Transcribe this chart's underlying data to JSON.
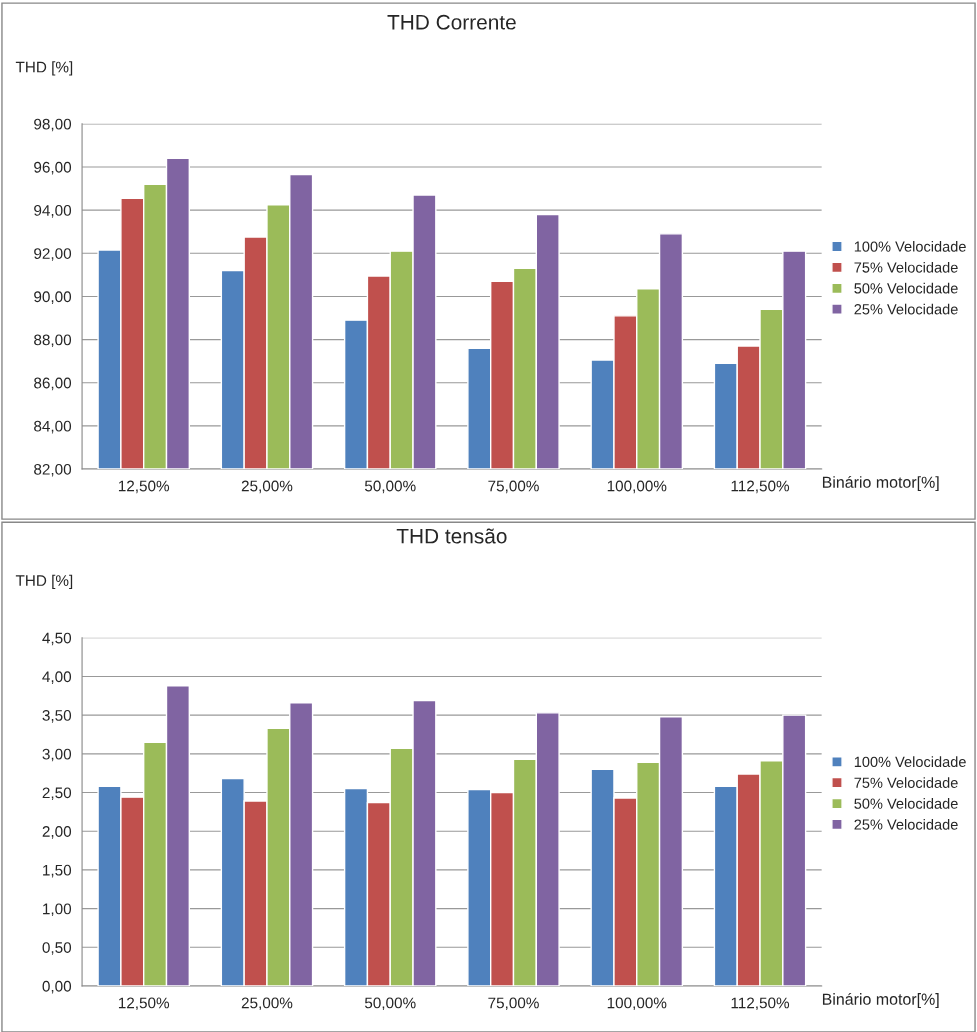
{
  "chart_data": [
    {
      "type": "bar",
      "title": "THD Corrente",
      "ylabel": "THD [%]",
      "xlabel": "Binário motor[%]",
      "categories": [
        "12,50%",
        "25,00%",
        "50,00%",
        "75,00%",
        "100,00%",
        "112,50%"
      ],
      "series": [
        {
          "name": "100% Velocidade",
          "color": "#4f81bd",
          "values": [
            92.15,
            91.2,
            88.9,
            87.6,
            87.05,
            86.9
          ]
        },
        {
          "name": "75% Velocidade",
          "color": "#c0504d",
          "values": [
            94.55,
            92.75,
            90.95,
            90.7,
            89.1,
            87.7
          ]
        },
        {
          "name": "50% Velocidade",
          "color": "#9bbb59",
          "values": [
            95.2,
            94.25,
            92.1,
            91.3,
            90.35,
            89.4
          ]
        },
        {
          "name": "25% Velocidade",
          "color": "#8064a2",
          "values": [
            96.4,
            95.65,
            94.7,
            93.8,
            92.9,
            92.1
          ]
        }
      ],
      "ylim": [
        82,
        98
      ],
      "yticks": [
        {
          "value": 82,
          "label": "82,00"
        },
        {
          "value": 84,
          "label": "84,00"
        },
        {
          "value": 86,
          "label": "86,00"
        },
        {
          "value": 88,
          "label": "88,00"
        },
        {
          "value": 90,
          "label": "90,00"
        },
        {
          "value": 92,
          "label": "92,00"
        },
        {
          "value": 94,
          "label": "94,00"
        },
        {
          "value": 96,
          "label": "96,00"
        },
        {
          "value": 98,
          "label": "98,00"
        }
      ],
      "grid": "y",
      "legend": "right"
    },
    {
      "type": "bar",
      "title": "THD tensão",
      "ylabel": "THD [%]",
      "xlabel": "Binário motor[%]",
      "categories": [
        "12,50%",
        "25,00%",
        "50,00%",
        "75,00%",
        "100,00%",
        "112,50%"
      ],
      "series": [
        {
          "name": "100% Velocidade",
          "color": "#4f81bd",
          "values": [
            2.58,
            2.68,
            2.55,
            2.54,
            2.8,
            2.58
          ]
        },
        {
          "name": "75% Velocidade",
          "color": "#c0504d",
          "values": [
            2.44,
            2.39,
            2.37,
            2.5,
            2.43,
            2.74
          ]
        },
        {
          "name": "50% Velocidade",
          "color": "#9bbb59",
          "values": [
            3.15,
            3.33,
            3.07,
            2.93,
            2.89,
            2.91
          ]
        },
        {
          "name": "25% Velocidade",
          "color": "#8064a2",
          "values": [
            3.88,
            3.66,
            3.69,
            3.53,
            3.48,
            3.5
          ]
        }
      ],
      "ylim": [
        0,
        4.5
      ],
      "yticks": [
        {
          "value": 0,
          "label": "0,00"
        },
        {
          "value": 0.5,
          "label": "0,50"
        },
        {
          "value": 1,
          "label": "1,00"
        },
        {
          "value": 1.5,
          "label": "1,50"
        },
        {
          "value": 2,
          "label": "2,00"
        },
        {
          "value": 2.5,
          "label": "2,50"
        },
        {
          "value": 3,
          "label": "3,00"
        },
        {
          "value": 3.5,
          "label": "3,50"
        },
        {
          "value": 4,
          "label": "4,00"
        },
        {
          "value": 4.5,
          "label": "4,50"
        }
      ],
      "grid": "y",
      "legend": "right"
    }
  ]
}
